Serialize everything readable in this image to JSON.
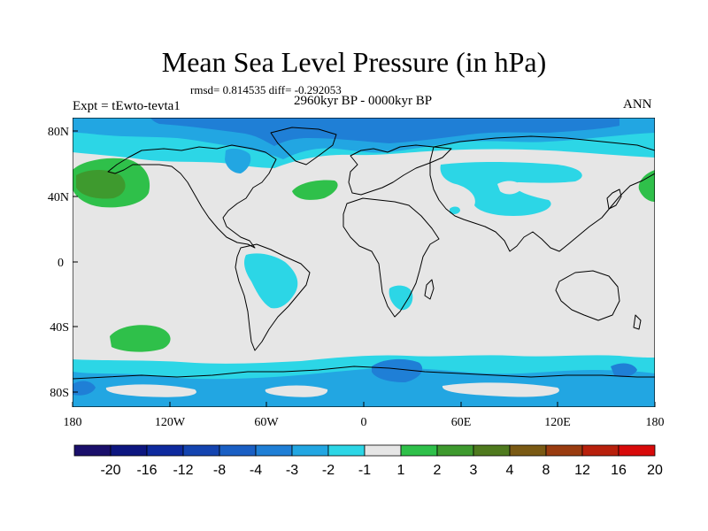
{
  "title": "Mean Sea Level Pressure (in hPa)",
  "stats_line": "rmsd= 0.814535 diff= -0.292053",
  "period": "2960kyr BP - 0000kyr BP",
  "experiment": "Expt = tEwto-tevta1",
  "season": "ANN",
  "lat_ticks": [
    "80N",
    "40N",
    "0",
    "40S",
    "80S"
  ],
  "lon_ticks": [
    "180",
    "120W",
    "60W",
    "0",
    "60E",
    "120E",
    "180"
  ],
  "colorbar": {
    "labels": [
      "-20",
      "-16",
      "-12",
      "-8",
      "-4",
      "-3",
      "-2",
      "-1",
      "1",
      "2",
      "3",
      "4",
      "8",
      "12",
      "16",
      "20"
    ],
    "colors": [
      "#1a0f6b",
      "#0d1680",
      "#0e2a9e",
      "#1444b0",
      "#1a5fc4",
      "#1f7fd6",
      "#22a6e2",
      "#2cd6e6",
      "#e6e6e6",
      "#2fc04a",
      "#3e9a2e",
      "#4f7a1e",
      "#7a5a14",
      "#9a3c10",
      "#b8200c",
      "#d80a0a"
    ]
  },
  "colors": {
    "background_field": "#e6e6e6",
    "weak_negative": "#2cd6e6",
    "moderate_negative": "#22a6e2",
    "strong_negative": "#1f7fd6",
    "weak_positive": "#2fc04a",
    "moderate_positive": "#3e9a2e"
  }
}
